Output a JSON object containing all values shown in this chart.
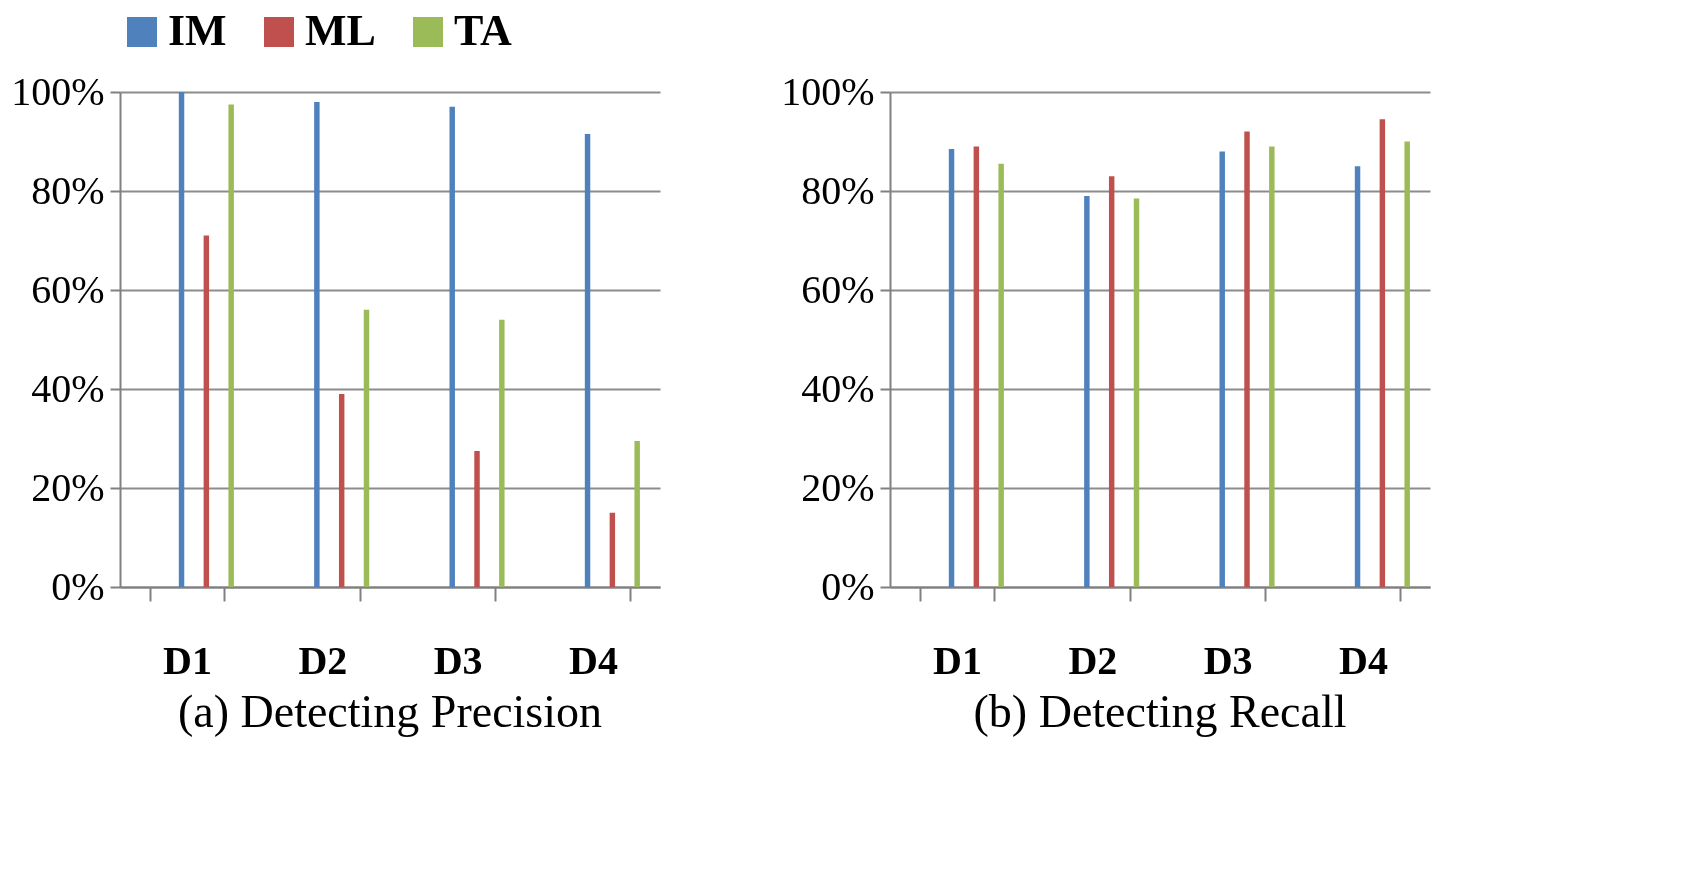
{
  "chart_data": [
    {
      "type": "bar",
      "title": "(a) Detecting Precision",
      "categories": [
        "D1",
        "D2",
        "D3",
        "D4"
      ],
      "series": [
        {
          "name": "IM",
          "color": "#4f81bd",
          "values": [
            100,
            98,
            97,
            91.5
          ]
        },
        {
          "name": "ML",
          "color": "#c0504d",
          "values": [
            71,
            39,
            27.5,
            15
          ]
        },
        {
          "name": "TA",
          "color": "#9bbb59",
          "values": [
            97.5,
            56,
            54,
            29.5
          ]
        }
      ],
      "ylim": [
        0,
        100
      ],
      "yticks": [
        {
          "value": 0,
          "label": "0%"
        },
        {
          "value": 20,
          "label": "20%"
        },
        {
          "value": 40,
          "label": "40%"
        },
        {
          "value": 60,
          "label": "60%"
        },
        {
          "value": 80,
          "label": "80%"
        },
        {
          "value": 100,
          "label": "100%"
        }
      ],
      "grid": "y",
      "legend": "top"
    },
    {
      "type": "bar",
      "title": "(b) Detecting Recall",
      "categories": [
        "D1",
        "D2",
        "D3",
        "D4"
      ],
      "series": [
        {
          "name": "IM",
          "color": "#4f81bd",
          "values": [
            88.5,
            79,
            88,
            85
          ]
        },
        {
          "name": "ML",
          "color": "#c0504d",
          "values": [
            89,
            83,
            92,
            94.5
          ]
        },
        {
          "name": "TA",
          "color": "#9bbb59",
          "values": [
            85.5,
            78.5,
            89,
            90
          ]
        }
      ],
      "ylim": [
        0,
        100
      ],
      "yticks": [
        {
          "value": 0,
          "label": "0%"
        },
        {
          "value": 20,
          "label": "20%"
        },
        {
          "value": 40,
          "label": "40%"
        },
        {
          "value": 60,
          "label": "60%"
        },
        {
          "value": 80,
          "label": "80%"
        },
        {
          "value": 100,
          "label": "100%"
        }
      ],
      "grid": "y",
      "legend": "top"
    }
  ]
}
